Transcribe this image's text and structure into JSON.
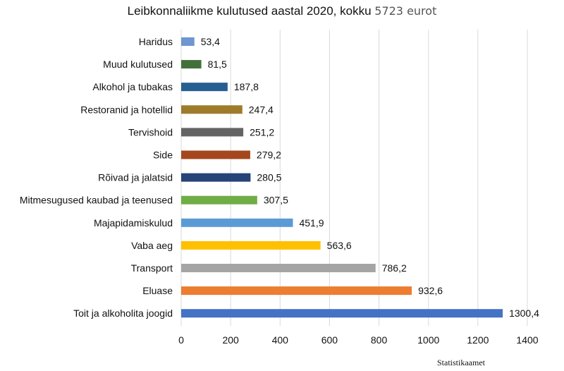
{
  "chart_data": {
    "type": "bar",
    "orientation": "horizontal",
    "title": "Leibkonnaliikme kulutused aastal 2020, kokku",
    "title_highlight": "5723 eurot",
    "source": "Statistikaamet",
    "categories": [
      "Haridus",
      "Muud kulutused",
      "Alkohol ja tubakas",
      "Restoranid ja hotellid",
      "Tervishoid",
      "Side",
      "Rõivad ja jalatsid",
      "Mitmesugused kaubad ja teenused",
      "Majapidamiskulud",
      "Vaba aeg",
      "Transport",
      "Eluase",
      "Toit ja alkoholita joogid"
    ],
    "values": [
      53.4,
      81.5,
      187.8,
      247.4,
      251.2,
      279.2,
      280.5,
      307.5,
      451.9,
      563.6,
      786.2,
      932.6,
      1300.4
    ],
    "value_labels": [
      "53,4",
      "81,5",
      "187,8",
      "247,4",
      "251,2",
      "279,2",
      "280,5",
      "307,5",
      "451,9",
      "563,6",
      "786,2",
      "932,6",
      "1300,4"
    ],
    "colors": [
      "#6f95d2",
      "#43703a",
      "#255e91",
      "#9e7b2b",
      "#646464",
      "#a5471e",
      "#264478",
      "#70ad47",
      "#5b9bd5",
      "#ffc000",
      "#a5a5a5",
      "#ed7d31",
      "#4472c4"
    ],
    "xlim": [
      0,
      1400
    ],
    "xticks": [
      0,
      200,
      400,
      600,
      800,
      1000,
      1200,
      1400
    ],
    "grid": true,
    "xlabel": "",
    "ylabel": ""
  }
}
